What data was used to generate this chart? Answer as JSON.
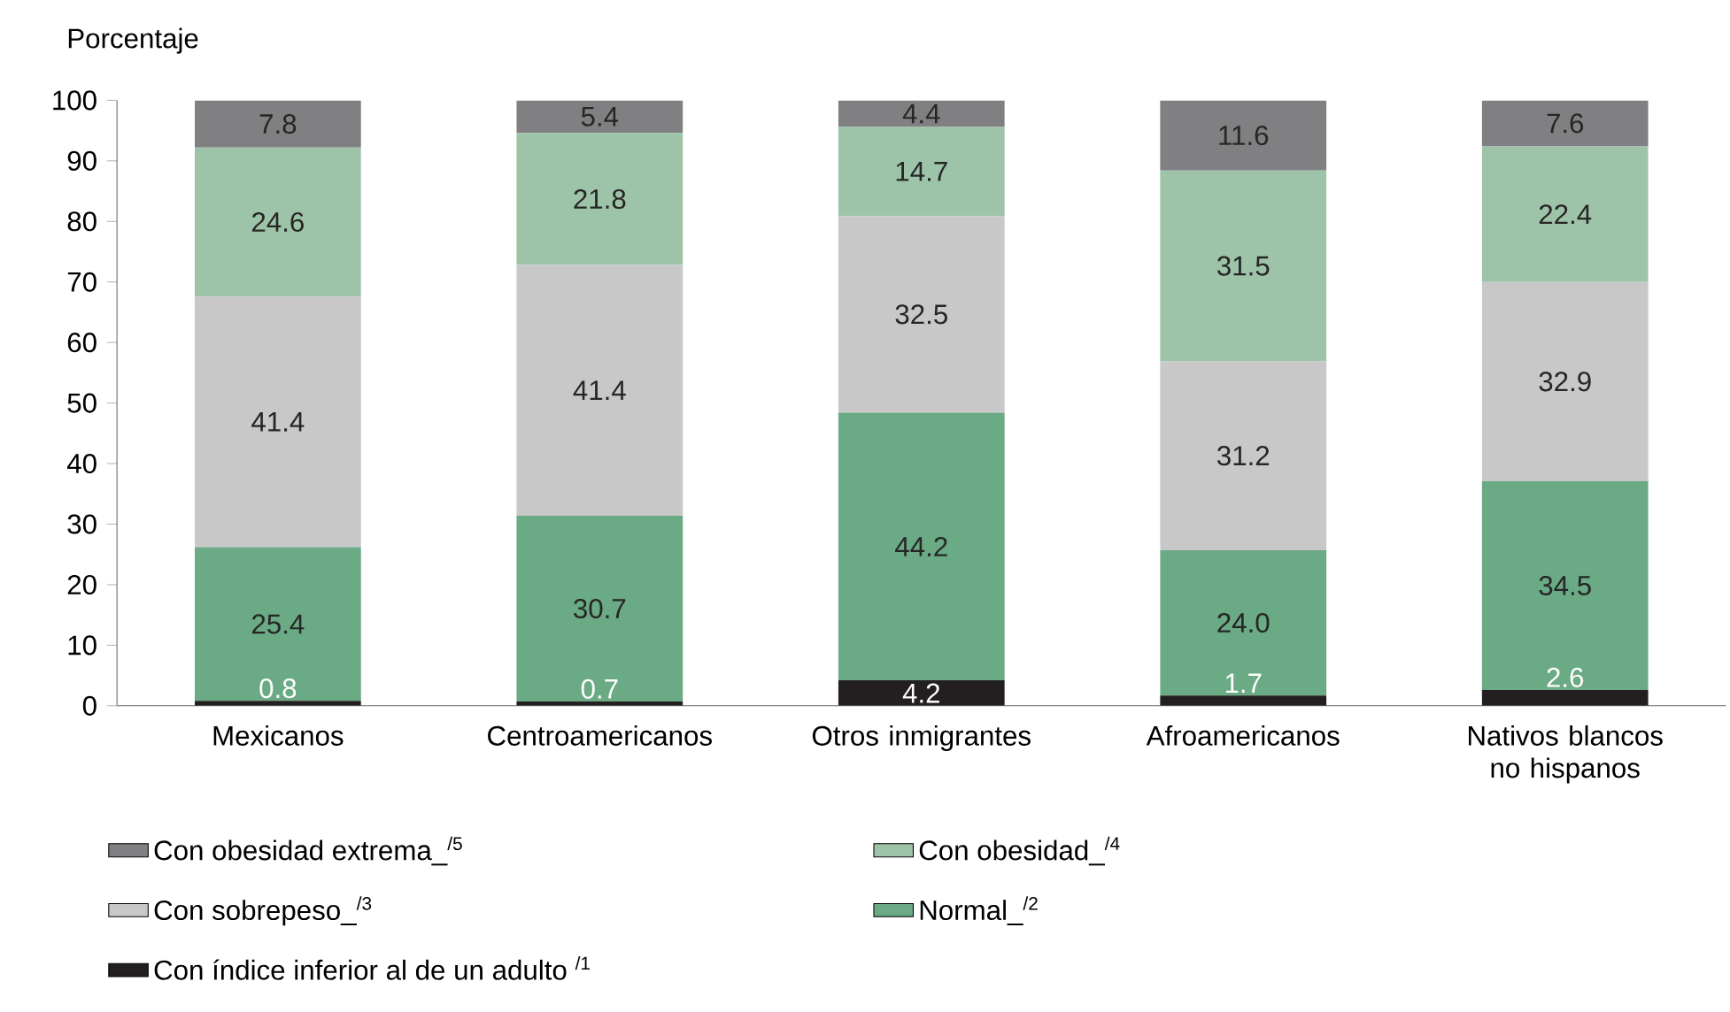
{
  "chart_data": {
    "type": "bar",
    "stacked": true,
    "ylabel": "Porcentaje",
    "categories": [
      "Mexicanos",
      "Centroamericanos",
      "Otros inmigrantes",
      "Afroamericanos",
      "Nativos blancos no hispanos"
    ],
    "ylim": [
      0,
      100
    ],
    "yticks": [
      0,
      10,
      20,
      30,
      40,
      50,
      60,
      70,
      80,
      90,
      100
    ],
    "grid": false,
    "legend": "bottom",
    "series": [
      {
        "name": "Con índice inferior al de un adulto $^{/1}$",
        "color": "#231f20",
        "values": [
          0.8,
          0.7,
          4.2,
          1.7,
          2.6
        ],
        "value_labels": [
          "0.8",
          "0.7",
          "4.2",
          "1.7",
          "2.6"
        ]
      },
      {
        "name": "Normal_$^{/2}$",
        "color": "#6aaa84",
        "values": [
          25.4,
          30.7,
          44.2,
          24.0,
          34.5
        ],
        "value_labels": [
          "25.4",
          "30.7",
          "44.2",
          "24.0",
          "34.5"
        ]
      },
      {
        "name": "Con sobrepeso_$^{/3}$",
        "color": "#c8c8c9",
        "values": [
          41.4,
          41.4,
          32.5,
          31.2,
          32.9
        ],
        "value_labels": [
          "41.4",
          "41.4",
          "32.5",
          "31.2",
          "32.9"
        ]
      },
      {
        "name": "Con obesidad_$^{/4}$",
        "color": "#9dc4a8",
        "values": [
          24.6,
          21.8,
          14.7,
          31.5,
          22.4
        ],
        "value_labels": [
          "24.6",
          "21.8",
          "14.7",
          "31.5",
          "22.4"
        ]
      },
      {
        "name": "Con obesidad extrema_$^{/5}$",
        "color": "#808083",
        "values": [
          7.8,
          5.4,
          4.4,
          11.6,
          7.6
        ],
        "value_labels": [
          "7.8",
          "5.4",
          "4.4",
          "11.6",
          "7.6"
        ]
      }
    ]
  }
}
